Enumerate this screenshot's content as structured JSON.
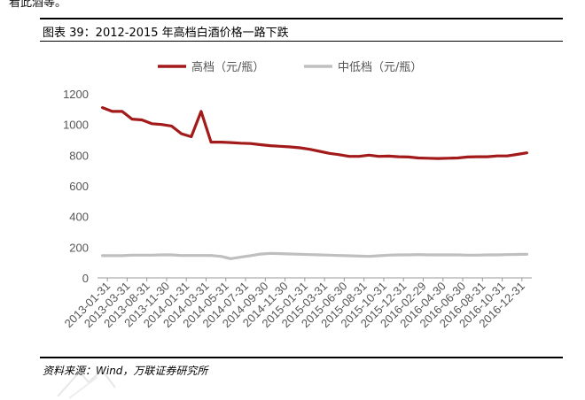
{
  "header_fragment": "看此酒等。",
  "figure_title": "图表 39：2012-2015 年高档白酒价格一路下跌",
  "source": "资料来源：Wind，万联证券研究所",
  "chart_data": {
    "type": "line",
    "ylim": [
      0,
      1200
    ],
    "yticks": [
      0,
      200,
      400,
      600,
      800,
      1000,
      1200
    ],
    "xlabels": [
      "2013-01-31",
      "2013-03-31",
      "2013-08-31",
      "2013-11-30",
      "2014-01-31",
      "2014-03-31",
      "2014-05-31",
      "2014-07-31",
      "2014-09-30",
      "2014-11-30",
      "2015-01-31",
      "2015-03-31",
      "2015-06-30",
      "2015-08-31",
      "2015-10-31",
      "2015-12-31",
      "2016-02-29",
      "2016-04-30",
      "2016-06-30",
      "2016-08-31",
      "2016-10-31",
      "2016-12-31"
    ],
    "legend": [
      "高档（元/瓶）",
      "中低档（元/瓶）"
    ],
    "legend_position": "top",
    "grid": false,
    "series": [
      {
        "name": "高档（元/瓶）",
        "color": "#A31A1A",
        "values": [
          1110,
          1085,
          1085,
          1035,
          1030,
          1005,
          1000,
          990,
          940,
          920,
          1085,
          885,
          885,
          882,
          878,
          876,
          868,
          862,
          858,
          854,
          848,
          838,
          825,
          812,
          803,
          792,
          792,
          800,
          792,
          794,
          790,
          788,
          782,
          780,
          778,
          780,
          782,
          788,
          790,
          790,
          795,
          795,
          805,
          815
        ]
      },
      {
        "name": "中低档（元/瓶）",
        "color": "#BFBFBF",
        "values": [
          145,
          145,
          145,
          148,
          148,
          148,
          150,
          150,
          146,
          146,
          146,
          146,
          140,
          125,
          135,
          145,
          155,
          160,
          158,
          156,
          154,
          152,
          150,
          148,
          146,
          144,
          142,
          140,
          144,
          148,
          150,
          150,
          152,
          150,
          150,
          150,
          150,
          148,
          148,
          150,
          150,
          152,
          153,
          154
        ]
      }
    ]
  }
}
